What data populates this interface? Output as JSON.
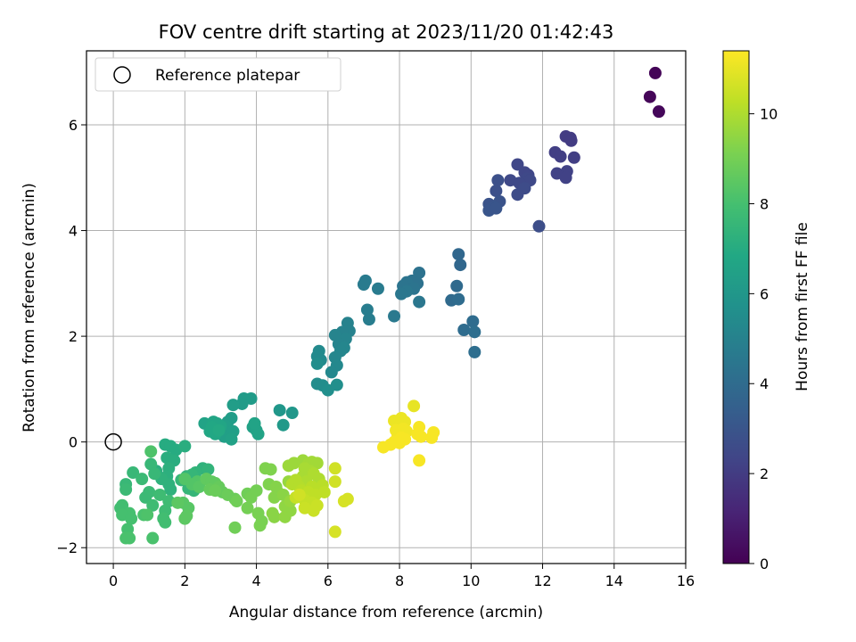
{
  "chart_data": {
    "type": "scatter",
    "title": "FOV centre drift starting at 2023/11/20 01:42:43",
    "xlabel": "Angular distance from reference (arcmin)",
    "ylabel": "Rotation from reference (arcmin)",
    "xlim": [
      -0.75,
      16
    ],
    "ylim": [
      -2.3,
      7.4
    ],
    "xticks": [
      "0",
      "2",
      "4",
      "6",
      "8",
      "10",
      "12",
      "14",
      "16"
    ],
    "yticks": [
      "−2",
      "0",
      "2",
      "4",
      "6"
    ],
    "grid": true,
    "legend": {
      "placement": "top-left",
      "entries": [
        "Reference platepar"
      ]
    },
    "reference_point": {
      "x": 0,
      "y": 0
    },
    "colorbar": {
      "label": "Hours from first FF file",
      "range": [
        0,
        11.4
      ],
      "ticks": [
        "0",
        "2",
        "4",
        "6",
        "8",
        "10"
      ],
      "colormap": "viridis"
    },
    "points": [
      {
        "x": 15.15,
        "y": 6.98,
        "c": 0.1
      },
      {
        "x": 15.0,
        "y": 6.53,
        "c": 0.15
      },
      {
        "x": 15.25,
        "y": 6.25,
        "c": 0.2
      },
      {
        "x": 12.65,
        "y": 5.78,
        "c": 2.0
      },
      {
        "x": 12.78,
        "y": 5.75,
        "c": 2.0
      },
      {
        "x": 12.8,
        "y": 5.7,
        "c": 2.0
      },
      {
        "x": 12.35,
        "y": 5.48,
        "c": 2.1
      },
      {
        "x": 12.5,
        "y": 5.4,
        "c": 2.1
      },
      {
        "x": 12.88,
        "y": 5.38,
        "c": 2.1
      },
      {
        "x": 12.68,
        "y": 5.12,
        "c": 2.2
      },
      {
        "x": 12.4,
        "y": 5.08,
        "c": 2.2
      },
      {
        "x": 12.65,
        "y": 5.0,
        "c": 2.2
      },
      {
        "x": 11.3,
        "y": 5.25,
        "c": 2.4
      },
      {
        "x": 11.5,
        "y": 5.1,
        "c": 2.4
      },
      {
        "x": 11.6,
        "y": 5.05,
        "c": 2.4
      },
      {
        "x": 11.55,
        "y": 4.98,
        "c": 2.5
      },
      {
        "x": 11.65,
        "y": 4.95,
        "c": 2.5
      },
      {
        "x": 11.1,
        "y": 4.95,
        "c": 2.5
      },
      {
        "x": 11.35,
        "y": 4.9,
        "c": 2.5
      },
      {
        "x": 11.5,
        "y": 4.8,
        "c": 2.6
      },
      {
        "x": 11.3,
        "y": 4.68,
        "c": 2.6
      },
      {
        "x": 11.9,
        "y": 4.08,
        "c": 2.7
      },
      {
        "x": 10.75,
        "y": 4.95,
        "c": 2.8
      },
      {
        "x": 10.7,
        "y": 4.75,
        "c": 2.8
      },
      {
        "x": 10.8,
        "y": 4.55,
        "c": 2.9
      },
      {
        "x": 10.5,
        "y": 4.5,
        "c": 2.9
      },
      {
        "x": 10.65,
        "y": 4.45,
        "c": 3.0
      },
      {
        "x": 10.5,
        "y": 4.38,
        "c": 3.0
      },
      {
        "x": 10.7,
        "y": 4.42,
        "c": 3.0
      },
      {
        "x": 9.65,
        "y": 3.55,
        "c": 3.8
      },
      {
        "x": 9.7,
        "y": 3.35,
        "c": 3.8
      },
      {
        "x": 9.6,
        "y": 2.95,
        "c": 3.9
      },
      {
        "x": 9.45,
        "y": 2.68,
        "c": 3.9
      },
      {
        "x": 9.65,
        "y": 2.7,
        "c": 4.0
      },
      {
        "x": 10.05,
        "y": 2.28,
        "c": 4.0
      },
      {
        "x": 9.8,
        "y": 2.12,
        "c": 4.0
      },
      {
        "x": 10.1,
        "y": 2.08,
        "c": 4.1
      },
      {
        "x": 10.1,
        "y": 1.7,
        "c": 4.1
      },
      {
        "x": 8.55,
        "y": 3.2,
        "c": 4.3
      },
      {
        "x": 8.35,
        "y": 3.05,
        "c": 4.3
      },
      {
        "x": 8.5,
        "y": 3.0,
        "c": 4.3
      },
      {
        "x": 8.2,
        "y": 3.02,
        "c": 4.4
      },
      {
        "x": 8.1,
        "y": 2.95,
        "c": 4.4
      },
      {
        "x": 8.4,
        "y": 2.9,
        "c": 4.4
      },
      {
        "x": 8.2,
        "y": 2.85,
        "c": 4.5
      },
      {
        "x": 8.05,
        "y": 2.8,
        "c": 4.5
      },
      {
        "x": 8.55,
        "y": 2.65,
        "c": 4.5
      },
      {
        "x": 7.85,
        "y": 2.38,
        "c": 4.6
      },
      {
        "x": 7.05,
        "y": 3.05,
        "c": 4.7
      },
      {
        "x": 7.0,
        "y": 2.98,
        "c": 4.7
      },
      {
        "x": 7.4,
        "y": 2.9,
        "c": 4.7
      },
      {
        "x": 7.1,
        "y": 2.5,
        "c": 4.8
      },
      {
        "x": 7.15,
        "y": 2.32,
        "c": 4.8
      },
      {
        "x": 6.55,
        "y": 2.25,
        "c": 5.0
      },
      {
        "x": 6.6,
        "y": 2.1,
        "c": 5.0
      },
      {
        "x": 6.4,
        "y": 2.08,
        "c": 5.0
      },
      {
        "x": 6.2,
        "y": 2.02,
        "c": 5.1
      },
      {
        "x": 6.5,
        "y": 1.95,
        "c": 5.1
      },
      {
        "x": 6.3,
        "y": 1.85,
        "c": 5.1
      },
      {
        "x": 6.45,
        "y": 1.78,
        "c": 5.2
      },
      {
        "x": 6.35,
        "y": 1.72,
        "c": 5.2
      },
      {
        "x": 6.2,
        "y": 1.6,
        "c": 5.2
      },
      {
        "x": 6.25,
        "y": 1.45,
        "c": 5.3
      },
      {
        "x": 6.1,
        "y": 1.32,
        "c": 5.3
      },
      {
        "x": 5.75,
        "y": 1.72,
        "c": 5.4
      },
      {
        "x": 5.7,
        "y": 1.62,
        "c": 5.4
      },
      {
        "x": 5.8,
        "y": 1.55,
        "c": 5.4
      },
      {
        "x": 5.7,
        "y": 1.48,
        "c": 5.5
      },
      {
        "x": 5.7,
        "y": 1.1,
        "c": 5.5
      },
      {
        "x": 5.85,
        "y": 1.07,
        "c": 5.5
      },
      {
        "x": 6.0,
        "y": 0.98,
        "c": 5.6
      },
      {
        "x": 6.25,
        "y": 1.08,
        "c": 5.6
      },
      {
        "x": 4.65,
        "y": 0.6,
        "c": 6.0
      },
      {
        "x": 5.0,
        "y": 0.55,
        "c": 6.0
      },
      {
        "x": 4.75,
        "y": 0.32,
        "c": 6.1
      },
      {
        "x": 3.85,
        "y": 0.82,
        "c": 6.2
      },
      {
        "x": 3.65,
        "y": 0.82,
        "c": 6.2
      },
      {
        "x": 3.6,
        "y": 0.72,
        "c": 6.2
      },
      {
        "x": 3.35,
        "y": 0.7,
        "c": 6.3
      },
      {
        "x": 3.3,
        "y": 0.45,
        "c": 6.3
      },
      {
        "x": 3.2,
        "y": 0.38,
        "c": 6.3
      },
      {
        "x": 3.15,
        "y": 0.3,
        "c": 6.4
      },
      {
        "x": 3.35,
        "y": 0.2,
        "c": 6.4
      },
      {
        "x": 3.1,
        "y": 0.1,
        "c": 6.4
      },
      {
        "x": 3.3,
        "y": 0.05,
        "c": 6.5
      },
      {
        "x": 3.9,
        "y": 0.28,
        "c": 6.5
      },
      {
        "x": 4.0,
        "y": 0.22,
        "c": 6.5
      },
      {
        "x": 4.05,
        "y": 0.15,
        "c": 6.6
      },
      {
        "x": 3.95,
        "y": 0.35,
        "c": 6.6
      },
      {
        "x": 2.55,
        "y": 0.35,
        "c": 6.6
      },
      {
        "x": 2.8,
        "y": 0.38,
        "c": 6.7
      },
      {
        "x": 2.9,
        "y": 0.35,
        "c": 6.7
      },
      {
        "x": 3.0,
        "y": 0.3,
        "c": 6.7
      },
      {
        "x": 2.75,
        "y": 0.28,
        "c": 6.8
      },
      {
        "x": 2.7,
        "y": 0.2,
        "c": 6.8
      },
      {
        "x": 2.85,
        "y": 0.15,
        "c": 6.8
      },
      {
        "x": 2.95,
        "y": 0.22,
        "c": 6.9
      },
      {
        "x": 1.45,
        "y": -0.05,
        "c": 7.0
      },
      {
        "x": 1.6,
        "y": -0.08,
        "c": 7.0
      },
      {
        "x": 1.75,
        "y": -0.15,
        "c": 7.0
      },
      {
        "x": 2.0,
        "y": -0.08,
        "c": 7.1
      },
      {
        "x": 1.5,
        "y": -0.3,
        "c": 7.1
      },
      {
        "x": 1.7,
        "y": -0.35,
        "c": 7.1
      },
      {
        "x": 1.55,
        "y": -0.5,
        "c": 7.2
      },
      {
        "x": 1.2,
        "y": -0.55,
        "c": 7.2
      },
      {
        "x": 1.5,
        "y": -0.65,
        "c": 7.2
      },
      {
        "x": 1.55,
        "y": -0.8,
        "c": 7.3
      },
      {
        "x": 1.6,
        "y": -0.9,
        "c": 7.3
      },
      {
        "x": 1.35,
        "y": -0.7,
        "c": 7.3
      },
      {
        "x": 2.5,
        "y": -0.5,
        "c": 7.3
      },
      {
        "x": 2.65,
        "y": -0.52,
        "c": 7.4
      },
      {
        "x": 2.3,
        "y": -0.58,
        "c": 7.4
      },
      {
        "x": 2.05,
        "y": -0.65,
        "c": 7.4
      },
      {
        "x": 2.2,
        "y": -0.62,
        "c": 7.5
      },
      {
        "x": 1.9,
        "y": -0.72,
        "c": 7.5
      },
      {
        "x": 2.1,
        "y": -0.88,
        "c": 7.5
      },
      {
        "x": 2.25,
        "y": -0.92,
        "c": 7.5
      },
      {
        "x": 1.05,
        "y": -0.42,
        "c": 7.6
      },
      {
        "x": 1.15,
        "y": -0.6,
        "c": 7.6
      },
      {
        "x": 0.55,
        "y": -0.58,
        "c": 7.6
      },
      {
        "x": 0.35,
        "y": -0.8,
        "c": 7.6
      },
      {
        "x": 0.8,
        "y": -0.7,
        "c": 7.7
      },
      {
        "x": 0.35,
        "y": -0.9,
        "c": 7.7
      },
      {
        "x": 1.0,
        "y": -0.95,
        "c": 7.7
      },
      {
        "x": 0.9,
        "y": -1.05,
        "c": 7.7
      },
      {
        "x": 1.3,
        "y": -1.0,
        "c": 7.8
      },
      {
        "x": 1.1,
        "y": -1.2,
        "c": 7.8
      },
      {
        "x": 1.55,
        "y": -1.12,
        "c": 7.8
      },
      {
        "x": 1.45,
        "y": -1.3,
        "c": 7.8
      },
      {
        "x": 1.4,
        "y": -1.45,
        "c": 7.9
      },
      {
        "x": 1.45,
        "y": -1.52,
        "c": 7.9
      },
      {
        "x": 0.25,
        "y": -1.2,
        "c": 7.9
      },
      {
        "x": 0.2,
        "y": -1.25,
        "c": 7.9
      },
      {
        "x": 0.45,
        "y": -1.35,
        "c": 8.0
      },
      {
        "x": 0.25,
        "y": -1.38,
        "c": 8.0
      },
      {
        "x": 0.5,
        "y": -1.45,
        "c": 8.0
      },
      {
        "x": 0.4,
        "y": -1.65,
        "c": 8.0
      },
      {
        "x": 0.35,
        "y": -1.82,
        "c": 8.1
      },
      {
        "x": 0.45,
        "y": -1.82,
        "c": 8.1
      },
      {
        "x": 1.1,
        "y": -1.82,
        "c": 8.1
      },
      {
        "x": 0.85,
        "y": -1.38,
        "c": 8.1
      },
      {
        "x": 0.95,
        "y": -1.38,
        "c": 8.2
      },
      {
        "x": 1.05,
        "y": -0.18,
        "c": 8.2
      },
      {
        "x": 2.0,
        "y": -0.7,
        "c": 8.3
      },
      {
        "x": 2.35,
        "y": -0.75,
        "c": 8.3
      },
      {
        "x": 2.2,
        "y": -0.8,
        "c": 8.3
      },
      {
        "x": 2.4,
        "y": -0.85,
        "c": 8.4
      },
      {
        "x": 1.95,
        "y": -1.15,
        "c": 8.4
      },
      {
        "x": 2.1,
        "y": -1.25,
        "c": 8.4
      },
      {
        "x": 2.0,
        "y": -1.45,
        "c": 8.5
      },
      {
        "x": 2.05,
        "y": -1.4,
        "c": 8.5
      },
      {
        "x": 1.8,
        "y": -1.15,
        "c": 8.5
      },
      {
        "x": 2.6,
        "y": -0.7,
        "c": 8.6
      },
      {
        "x": 2.75,
        "y": -0.75,
        "c": 8.6
      },
      {
        "x": 2.85,
        "y": -0.78,
        "c": 8.6
      },
      {
        "x": 2.95,
        "y": -0.85,
        "c": 8.7
      },
      {
        "x": 2.7,
        "y": -0.9,
        "c": 8.7
      },
      {
        "x": 3.05,
        "y": -0.95,
        "c": 8.7
      },
      {
        "x": 2.85,
        "y": -0.92,
        "c": 8.8
      },
      {
        "x": 3.2,
        "y": -1.0,
        "c": 8.8
      },
      {
        "x": 3.4,
        "y": -1.08,
        "c": 8.8
      },
      {
        "x": 3.45,
        "y": -1.12,
        "c": 8.9
      },
      {
        "x": 3.4,
        "y": -1.62,
        "c": 8.9
      },
      {
        "x": 3.75,
        "y": -0.98,
        "c": 8.9
      },
      {
        "x": 3.85,
        "y": -1.05,
        "c": 9.0
      },
      {
        "x": 4.0,
        "y": -0.92,
        "c": 9.0
      },
      {
        "x": 3.75,
        "y": -1.25,
        "c": 9.0
      },
      {
        "x": 4.05,
        "y": -1.35,
        "c": 9.1
      },
      {
        "x": 4.15,
        "y": -1.5,
        "c": 9.1
      },
      {
        "x": 4.1,
        "y": -1.58,
        "c": 9.1
      },
      {
        "x": 4.25,
        "y": -0.5,
        "c": 9.2
      },
      {
        "x": 4.4,
        "y": -0.52,
        "c": 9.2
      },
      {
        "x": 4.35,
        "y": -0.8,
        "c": 9.2
      },
      {
        "x": 4.55,
        "y": -0.85,
        "c": 9.3
      },
      {
        "x": 4.6,
        "y": -0.95,
        "c": 9.3
      },
      {
        "x": 4.5,
        "y": -1.05,
        "c": 9.3
      },
      {
        "x": 4.75,
        "y": -1.0,
        "c": 9.4
      },
      {
        "x": 4.45,
        "y": -1.35,
        "c": 9.4
      },
      {
        "x": 4.5,
        "y": -1.42,
        "c": 9.4
      },
      {
        "x": 4.8,
        "y": -1.42,
        "c": 9.5
      },
      {
        "x": 4.95,
        "y": -1.3,
        "c": 9.5
      },
      {
        "x": 4.8,
        "y": -1.22,
        "c": 9.5
      },
      {
        "x": 4.95,
        "y": -1.12,
        "c": 9.6
      },
      {
        "x": 4.9,
        "y": -0.75,
        "c": 9.6
      },
      {
        "x": 4.9,
        "y": -0.45,
        "c": 9.7
      },
      {
        "x": 5.05,
        "y": -0.4,
        "c": 9.7
      },
      {
        "x": 5.3,
        "y": -0.35,
        "c": 9.7
      },
      {
        "x": 5.45,
        "y": -0.42,
        "c": 9.8
      },
      {
        "x": 5.55,
        "y": -0.38,
        "c": 9.8
      },
      {
        "x": 5.7,
        "y": -0.4,
        "c": 9.8
      },
      {
        "x": 5.35,
        "y": -0.5,
        "c": 9.9
      },
      {
        "x": 5.5,
        "y": -0.55,
        "c": 9.9
      },
      {
        "x": 5.3,
        "y": -0.65,
        "c": 9.9
      },
      {
        "x": 5.6,
        "y": -0.6,
        "c": 10.0
      },
      {
        "x": 5.75,
        "y": -0.7,
        "c": 10.0
      },
      {
        "x": 5.4,
        "y": -0.75,
        "c": 10.0
      },
      {
        "x": 5.1,
        "y": -0.72,
        "c": 10.1
      },
      {
        "x": 5.0,
        "y": -0.8,
        "c": 10.1
      },
      {
        "x": 5.2,
        "y": -0.85,
        "c": 10.1
      },
      {
        "x": 5.55,
        "y": -0.85,
        "c": 10.2
      },
      {
        "x": 5.85,
        "y": -0.82,
        "c": 10.2
      },
      {
        "x": 5.25,
        "y": -0.92,
        "c": 10.2
      },
      {
        "x": 5.45,
        "y": -0.95,
        "c": 10.3
      },
      {
        "x": 5.65,
        "y": -1.0,
        "c": 10.3
      },
      {
        "x": 5.9,
        "y": -0.95,
        "c": 10.3
      },
      {
        "x": 5.1,
        "y": -1.05,
        "c": 10.4
      },
      {
        "x": 5.35,
        "y": -1.1,
        "c": 10.4
      },
      {
        "x": 5.55,
        "y": -1.15,
        "c": 10.4
      },
      {
        "x": 5.7,
        "y": -1.2,
        "c": 10.5
      },
      {
        "x": 5.35,
        "y": -1.25,
        "c": 10.5
      },
      {
        "x": 5.6,
        "y": -1.3,
        "c": 10.5
      },
      {
        "x": 5.2,
        "y": -1.0,
        "c": 10.6
      },
      {
        "x": 6.2,
        "y": -0.5,
        "c": 10.6
      },
      {
        "x": 6.2,
        "y": -0.75,
        "c": 10.6
      },
      {
        "x": 6.2,
        "y": -1.7,
        "c": 10.7
      },
      {
        "x": 6.55,
        "y": -1.08,
        "c": 10.7
      },
      {
        "x": 6.45,
        "y": -1.12,
        "c": 10.7
      },
      {
        "x": 8.4,
        "y": 0.68,
        "c": 11.0
      },
      {
        "x": 7.85,
        "y": 0.4,
        "c": 11.1
      },
      {
        "x": 8.05,
        "y": 0.45,
        "c": 11.1
      },
      {
        "x": 8.15,
        "y": 0.38,
        "c": 11.1
      },
      {
        "x": 8.0,
        "y": 0.3,
        "c": 11.1
      },
      {
        "x": 7.9,
        "y": 0.22,
        "c": 11.2
      },
      {
        "x": 8.1,
        "y": 0.25,
        "c": 11.2
      },
      {
        "x": 8.2,
        "y": 0.2,
        "c": 11.2
      },
      {
        "x": 7.95,
        "y": 0.12,
        "c": 11.2
      },
      {
        "x": 8.05,
        "y": 0.08,
        "c": 11.3
      },
      {
        "x": 8.15,
        "y": 0.05,
        "c": 11.3
      },
      {
        "x": 7.85,
        "y": 0.0,
        "c": 11.3
      },
      {
        "x": 8.0,
        "y": -0.02,
        "c": 11.3
      },
      {
        "x": 7.75,
        "y": -0.05,
        "c": 11.3
      },
      {
        "x": 7.55,
        "y": -0.1,
        "c": 11.3
      },
      {
        "x": 8.55,
        "y": 0.28,
        "c": 11.3
      },
      {
        "x": 8.5,
        "y": 0.15,
        "c": 11.3
      },
      {
        "x": 8.6,
        "y": 0.1,
        "c": 11.3
      },
      {
        "x": 8.95,
        "y": 0.18,
        "c": 11.3
      },
      {
        "x": 8.9,
        "y": 0.08,
        "c": 11.3
      },
      {
        "x": 8.55,
        "y": -0.35,
        "c": 11.3
      }
    ]
  }
}
